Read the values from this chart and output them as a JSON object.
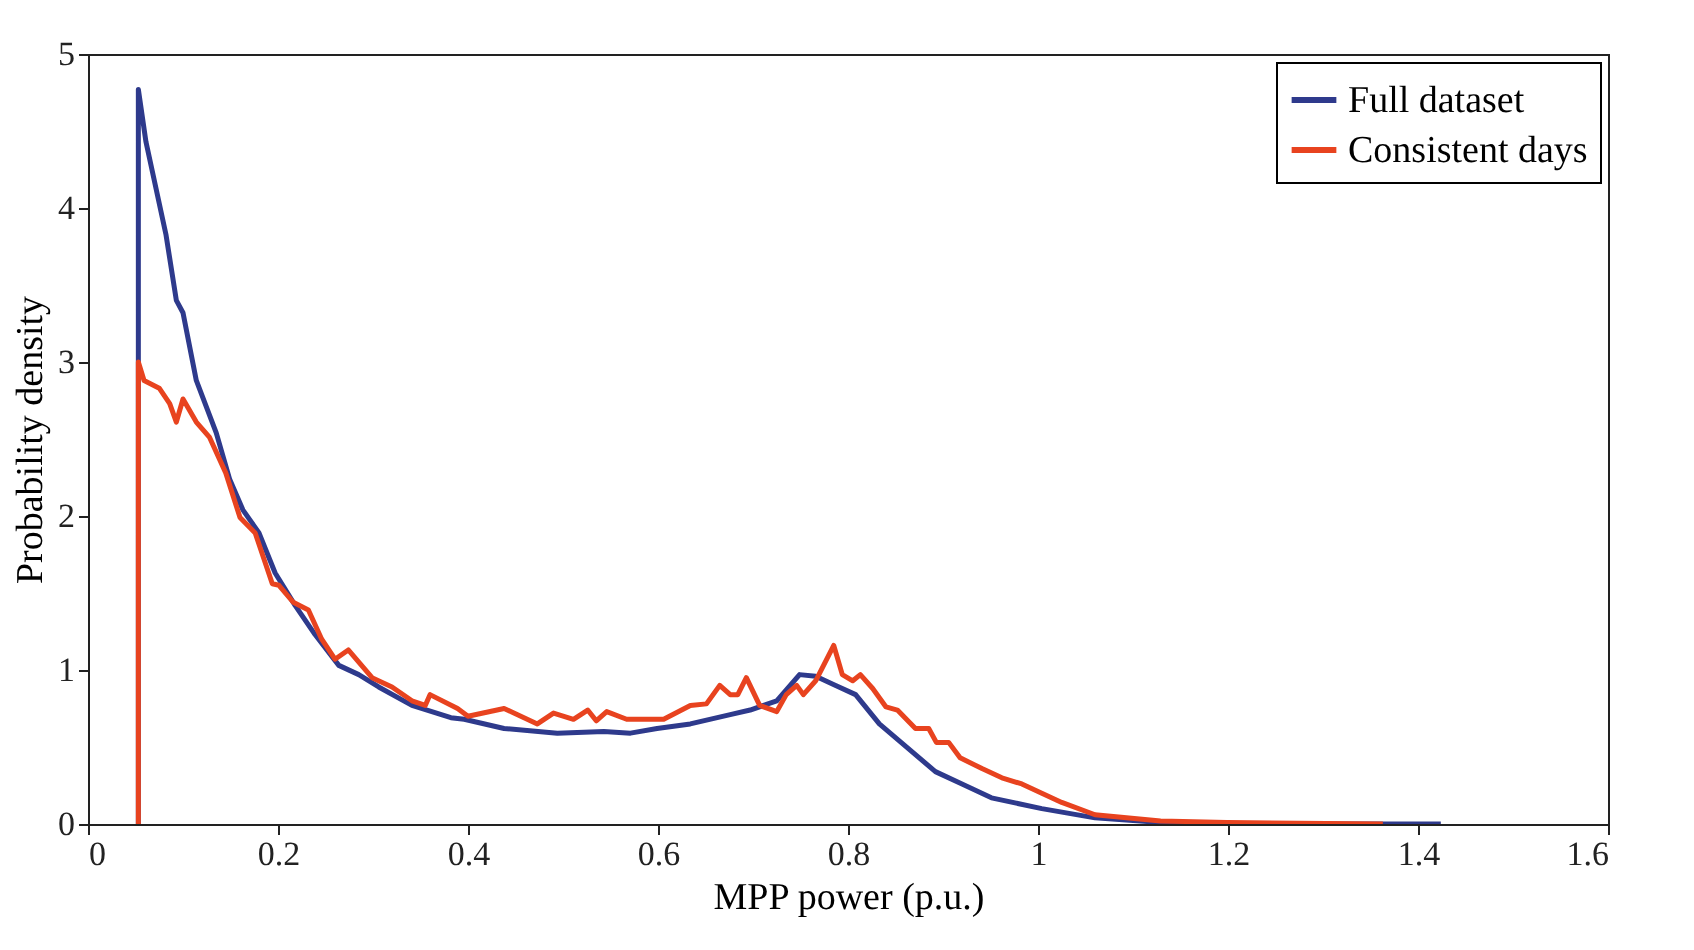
{
  "chart_data": {
    "type": "line",
    "xlabel": "MPP power (p.u.)",
    "ylabel": "Probability density",
    "xlim": [
      0,
      1.6
    ],
    "xticks": [
      0,
      0.2,
      0.4,
      0.6,
      0.8,
      1,
      1.2,
      1.4,
      1.6
    ],
    "ylim": [
      0,
      5
    ],
    "yticks": [
      0,
      1,
      2,
      3,
      4,
      5
    ],
    "grid": false,
    "legend": "top right",
    "marker": "none",
    "line_style": "solid",
    "series": [
      {
        "name": "Full dataset",
        "color": "#2e3a8c",
        "x": [
          0.053,
          0.053,
          0.061,
          0.082,
          0.093,
          0.1,
          0.114,
          0.135,
          0.149,
          0.163,
          0.18,
          0.197,
          0.218,
          0.239,
          0.264,
          0.285,
          0.306,
          0.341,
          0.382,
          0.396,
          0.438,
          0.494,
          0.543,
          0.571,
          0.599,
          0.634,
          0.676,
          0.697,
          0.725,
          0.749,
          0.766,
          0.787,
          0.808,
          0.833,
          0.854,
          0.892,
          0.92,
          0.951,
          1.004,
          1.06,
          1.129,
          1.23,
          1.424
        ],
        "values": [
          0,
          4.77,
          4.43,
          3.83,
          3.4,
          3.32,
          2.88,
          2.54,
          2.24,
          2.04,
          1.89,
          1.63,
          1.42,
          1.23,
          1.03,
          0.97,
          0.89,
          0.77,
          0.69,
          0.68,
          0.62,
          0.59,
          0.6,
          0.59,
          0.62,
          0.65,
          0.71,
          0.74,
          0.8,
          0.97,
          0.96,
          0.9,
          0.84,
          0.65,
          0.54,
          0.34,
          0.26,
          0.17,
          0.1,
          0.04,
          0.01,
          0,
          0
        ]
      },
      {
        "name": "Consistent days",
        "color": "#e8431f",
        "x": [
          0.053,
          0.053,
          0.059,
          0.075,
          0.086,
          0.093,
          0.1,
          0.114,
          0.128,
          0.145,
          0.16,
          0.176,
          0.194,
          0.201,
          0.216,
          0.232,
          0.246,
          0.26,
          0.274,
          0.299,
          0.32,
          0.341,
          0.355,
          0.36,
          0.389,
          0.4,
          0.438,
          0.473,
          0.49,
          0.511,
          0.526,
          0.535,
          0.546,
          0.567,
          0.606,
          0.634,
          0.651,
          0.665,
          0.676,
          0.684,
          0.693,
          0.707,
          0.725,
          0.735,
          0.746,
          0.753,
          0.766,
          0.785,
          0.794,
          0.805,
          0.813,
          0.826,
          0.84,
          0.852,
          0.871,
          0.885,
          0.893,
          0.906,
          0.918,
          0.941,
          0.962,
          0.983,
          1.004,
          1.025,
          1.06,
          1.129,
          1.199,
          1.363
        ],
        "values": [
          0,
          3.0,
          2.88,
          2.83,
          2.73,
          2.61,
          2.76,
          2.61,
          2.51,
          2.28,
          1.99,
          1.89,
          1.56,
          1.55,
          1.44,
          1.39,
          1.2,
          1.07,
          1.13,
          0.95,
          0.89,
          0.8,
          0.77,
          0.84,
          0.75,
          0.7,
          0.75,
          0.65,
          0.72,
          0.68,
          0.74,
          0.67,
          0.73,
          0.68,
          0.68,
          0.77,
          0.78,
          0.9,
          0.84,
          0.84,
          0.95,
          0.77,
          0.73,
          0.84,
          0.9,
          0.84,
          0.93,
          1.16,
          0.97,
          0.93,
          0.97,
          0.88,
          0.76,
          0.74,
          0.62,
          0.62,
          0.53,
          0.53,
          0.43,
          0.36,
          0.3,
          0.26,
          0.2,
          0.14,
          0.06,
          0.02,
          0.01,
          0
        ]
      }
    ]
  }
}
